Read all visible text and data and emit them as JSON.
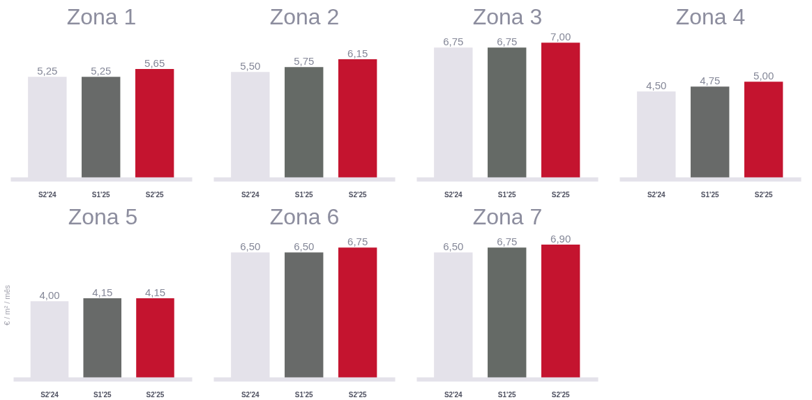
{
  "chart_data": [
    {
      "type": "bar",
      "title": "Zona 1",
      "categories": [
        "S2'24",
        "S1'25",
        "S2'25"
      ],
      "values": [
        5.25,
        5.25,
        5.65
      ],
      "value_labels": [
        "5,25",
        "5,25",
        "5,65"
      ],
      "colors": [
        "#e4e2ea",
        "#686a69",
        "#c4142f"
      ],
      "tick_labels": "x",
      "grid": false
    },
    {
      "type": "bar",
      "title": "Zona 2",
      "categories": [
        "S2'24",
        "S1'25",
        "S2'25"
      ],
      "values": [
        5.5,
        5.75,
        6.15
      ],
      "value_labels": [
        "5,50",
        "5,75",
        "6,15"
      ],
      "colors": [
        "#e4e2ea",
        "#656a66",
        "#c4142f"
      ],
      "tick_labels": "x",
      "grid": false
    },
    {
      "type": "bar",
      "title": "Zona 3",
      "categories": [
        "S2'24",
        "S1'25",
        "S2'25"
      ],
      "values": [
        6.75,
        6.75,
        7.0
      ],
      "value_labels": [
        "6,75",
        "6,75",
        "7,00"
      ],
      "colors": [
        "#e4e2ea",
        "#656a66",
        "#c4142f"
      ],
      "tick_labels": "x",
      "grid": false
    },
    {
      "type": "bar",
      "title": "Zona 4",
      "categories": [
        "S2'24",
        "S1'25",
        "S2'25"
      ],
      "values": [
        4.5,
        4.75,
        5.0
      ],
      "value_labels": [
        "4,50",
        "4,75",
        "5,00"
      ],
      "colors": [
        "#e4e2ea",
        "#686a69",
        "#c4142f"
      ],
      "tick_labels": "x",
      "grid": false
    },
    {
      "type": "bar",
      "title": "Zona 5",
      "ylabel": "€ / m² / mês",
      "categories": [
        "S2'24",
        "S1'25",
        "S2'25"
      ],
      "values": [
        4.0,
        4.15,
        4.15
      ],
      "value_labels": [
        "4,00",
        "4,15",
        "4,15"
      ],
      "colors": [
        "#e4e2ea",
        "#686a69",
        "#c4142f"
      ],
      "tick_labels": "x",
      "grid": false
    },
    {
      "type": "bar",
      "title": "Zona 6",
      "categories": [
        "S2'24",
        "S1'25",
        "S2'25"
      ],
      "values": [
        6.5,
        6.5,
        6.75
      ],
      "value_labels": [
        "6,50",
        "6,50",
        "6,75"
      ],
      "colors": [
        "#e4e2ea",
        "#686a69",
        "#c4142f"
      ],
      "tick_labels": "x",
      "grid": false
    },
    {
      "type": "bar",
      "title": "Zona 7",
      "categories": [
        "S2'24",
        "S1'25",
        "S2'25"
      ],
      "values": [
        6.5,
        6.75,
        6.9
      ],
      "value_labels": [
        "6,50",
        "6,75",
        "6,90"
      ],
      "colors": [
        "#e4e2ea",
        "#656a66",
        "#c4142f"
      ],
      "tick_labels": "x",
      "grid": false
    }
  ]
}
